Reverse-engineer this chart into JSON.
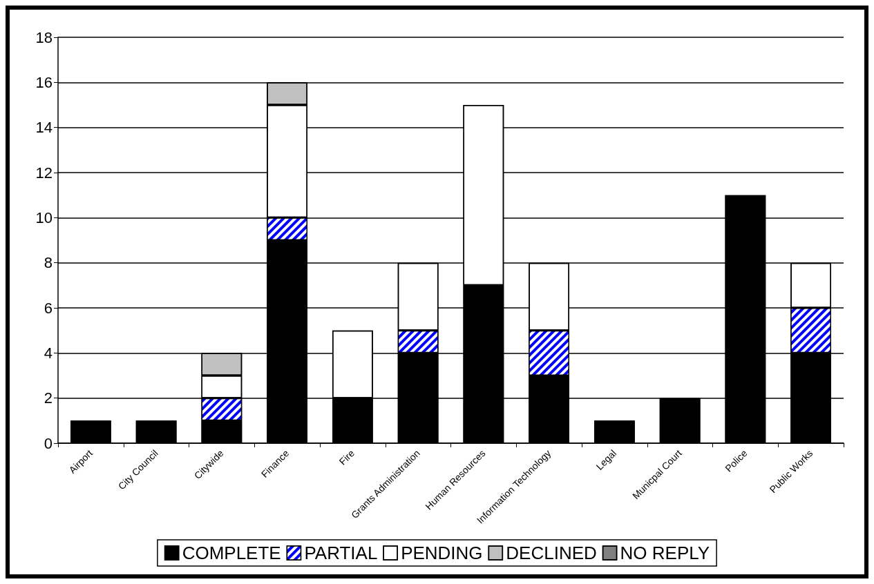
{
  "chart_data": {
    "type": "bar",
    "stacked": true,
    "categories": [
      "Airport",
      "City Council",
      "Citywide",
      "Finance",
      "Fire",
      "Grants Administration",
      "Human Resources",
      "Information Technology",
      "Legal",
      "Municpal Court",
      "Police",
      "Public Works"
    ],
    "series": [
      {
        "name": "COMPLETE",
        "color": "#000000",
        "values": [
          1,
          1,
          1,
          9,
          2,
          4,
          7,
          3,
          1,
          2,
          11,
          4
        ]
      },
      {
        "name": "PARTIAL",
        "color": "#0000ff",
        "values": [
          null,
          null,
          1,
          1,
          null,
          1,
          null,
          2,
          null,
          null,
          null,
          2
        ]
      },
      {
        "name": "PENDING",
        "color": "#ffffff",
        "values": [
          null,
          null,
          1,
          5,
          3,
          3,
          8,
          3,
          null,
          null,
          null,
          2
        ]
      },
      {
        "name": "DECLINED",
        "color": "#c0c0c0",
        "values": [
          null,
          null,
          1,
          1,
          null,
          null,
          null,
          null,
          null,
          null,
          null,
          null
        ]
      },
      {
        "name": "NO REPLY",
        "color": "#808080",
        "values": [
          null,
          null,
          null,
          null,
          null,
          null,
          null,
          null,
          null,
          null,
          null,
          null
        ]
      }
    ],
    "ylim": [
      0,
      18
    ],
    "yticks": [
      0,
      2,
      4,
      6,
      8,
      10,
      12,
      14,
      16,
      18
    ],
    "grid": "y",
    "legend": "bottom"
  }
}
